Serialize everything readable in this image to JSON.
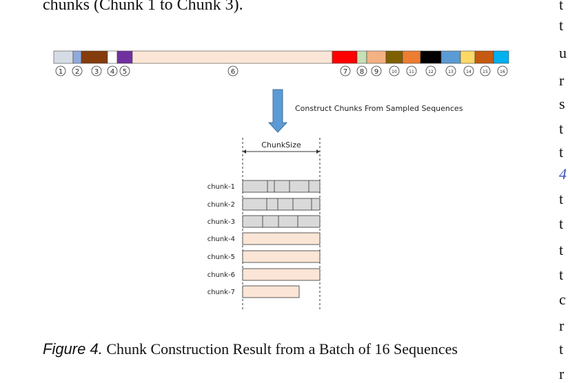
{
  "top_text": "chunks (Chunk 1 to Chunk 3).",
  "right_column_letters": [
    "t",
    "t",
    "u",
    "r",
    "s",
    "t",
    "t",
    "4",
    "t",
    "t",
    "t",
    "t",
    "c",
    "r",
    "t",
    "r"
  ],
  "sequence_bar": {
    "segments": [
      {
        "label": "1",
        "color": "#d6dce5"
      },
      {
        "label": "2",
        "color": "#8faadc"
      },
      {
        "label": "3",
        "color": "#843c0c"
      },
      {
        "label": "4",
        "color": "#ffffff"
      },
      {
        "label": "5",
        "color": "#7030a0"
      },
      {
        "label": "6",
        "color": "#fbe5d6"
      },
      {
        "label": "7",
        "color": "#ff0000"
      },
      {
        "label": "8",
        "color": "#c5e0b4"
      },
      {
        "label": "9",
        "color": "#f4b183"
      },
      {
        "label": "10",
        "color": "#7f6000"
      },
      {
        "label": "11",
        "color": "#ed7d31"
      },
      {
        "label": "12",
        "color": "#000000"
      },
      {
        "label": "13",
        "color": "#5b9bd5"
      },
      {
        "label": "14",
        "color": "#ffd966"
      },
      {
        "label": "15",
        "color": "#c55a11"
      },
      {
        "label": "16",
        "color": "#00b0f0"
      }
    ]
  },
  "arrow_label": "Construct Chunks From Sampled Sequences",
  "chunk_size_label": "ChunkSize",
  "chunks": [
    {
      "label": "chunk-1",
      "fill": "#d9d9d9",
      "fraction": 1.0
    },
    {
      "label": "chunk-2",
      "fill": "#d9d9d9",
      "fraction": 1.0
    },
    {
      "label": "chunk-3",
      "fill": "#d9d9d9",
      "fraction": 1.0
    },
    {
      "label": "chunk-4",
      "fill": "#fbe5d6",
      "fraction": 1.0
    },
    {
      "label": "chunk-5",
      "fill": "#fbe5d6",
      "fraction": 1.0
    },
    {
      "label": "chunk-6",
      "fill": "#fbe5d6",
      "fraction": 1.0
    },
    {
      "label": "chunk-7",
      "fill": "#fbe5d6",
      "fraction": 0.73
    }
  ],
  "caption": {
    "figure_label": "Figure 4.",
    "text": " Chunk Construction Result from a Batch of 16 Sequences"
  }
}
